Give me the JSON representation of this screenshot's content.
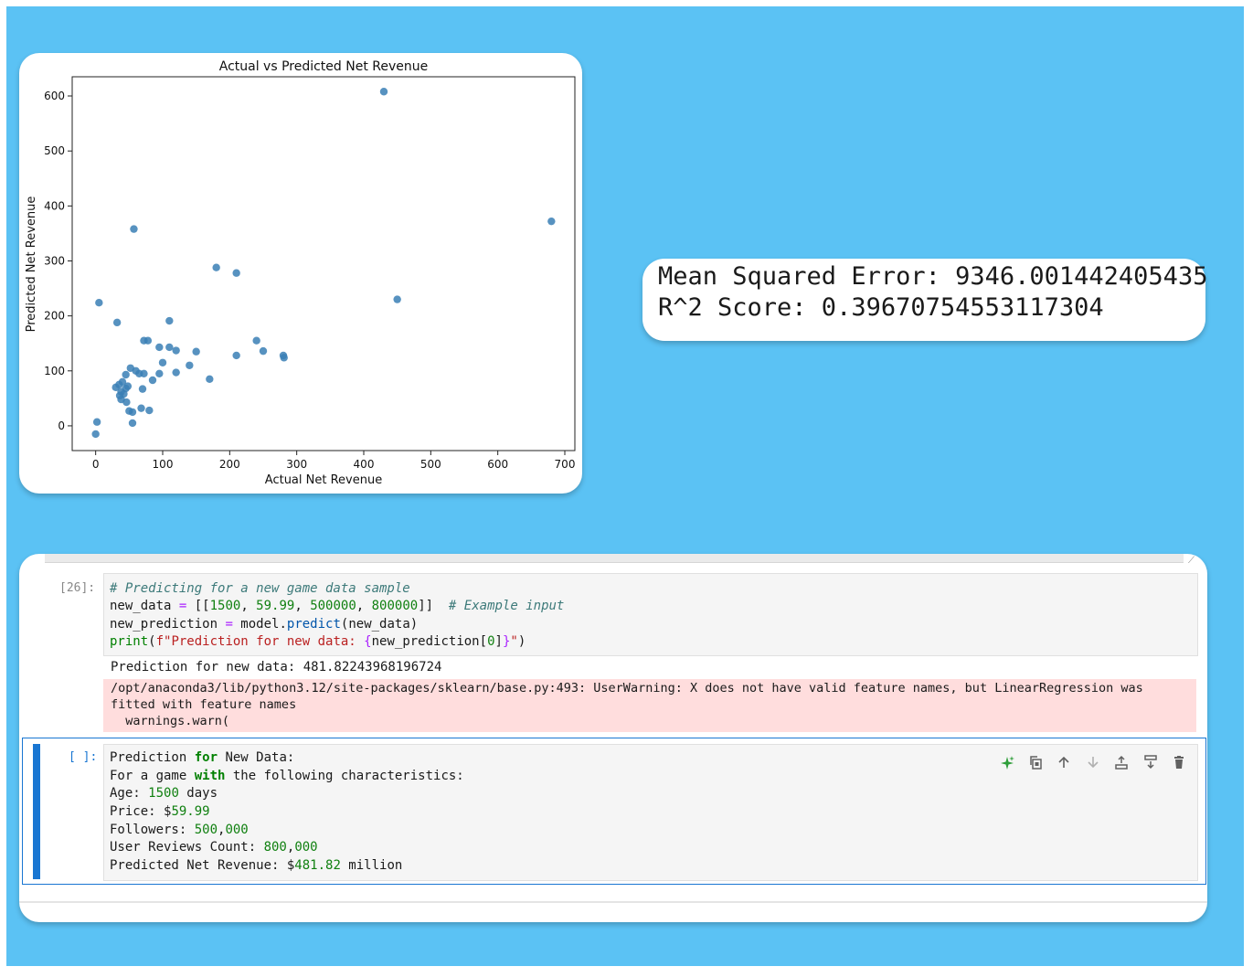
{
  "chart_data": {
    "type": "scatter",
    "title": "Actual vs Predicted Net Revenue",
    "xlabel": "Actual Net Revenue",
    "ylabel": "Predicted Net Revenue",
    "xlim": [
      -35,
      715
    ],
    "ylim": [
      -45,
      635
    ],
    "xticks": [
      0,
      100,
      200,
      300,
      400,
      500,
      600,
      700
    ],
    "yticks": [
      0,
      100,
      200,
      300,
      400,
      500,
      600
    ],
    "marker_color": "#3a7fb5",
    "grid": false,
    "points": [
      [
        430,
        608
      ],
      [
        680,
        372
      ],
      [
        57,
        358
      ],
      [
        180,
        288
      ],
      [
        210,
        278
      ],
      [
        450,
        230
      ],
      [
        5,
        224
      ],
      [
        110,
        191
      ],
      [
        32,
        188
      ],
      [
        72,
        155
      ],
      [
        78,
        155
      ],
      [
        240,
        155
      ],
      [
        95,
        143
      ],
      [
        110,
        143
      ],
      [
        120,
        137
      ],
      [
        150,
        135
      ],
      [
        250,
        136
      ],
      [
        210,
        128
      ],
      [
        280,
        128
      ],
      [
        281,
        124
      ],
      [
        100,
        115
      ],
      [
        140,
        110
      ],
      [
        52,
        105
      ],
      [
        60,
        100
      ],
      [
        65,
        95
      ],
      [
        45,
        93
      ],
      [
        120,
        97
      ],
      [
        95,
        95
      ],
      [
        72,
        95
      ],
      [
        170,
        85
      ],
      [
        85,
        83
      ],
      [
        40,
        80
      ],
      [
        35,
        75
      ],
      [
        30,
        70
      ],
      [
        45,
        68
      ],
      [
        38,
        62
      ],
      [
        70,
        67
      ],
      [
        42,
        58
      ],
      [
        38,
        48
      ],
      [
        46,
        43
      ],
      [
        68,
        32
      ],
      [
        80,
        28
      ],
      [
        50,
        27
      ],
      [
        55,
        25
      ],
      [
        2,
        7
      ],
      [
        55,
        5
      ],
      [
        0,
        -15
      ],
      [
        48,
        72
      ],
      [
        36,
        55
      ]
    ]
  },
  "metrics": {
    "mse_line": "Mean Squared Error: 9346.001442405435",
    "r2_line": "R^2 Score: 0.39670754553117304"
  },
  "notebook": {
    "cell1_prompt": "[26]:",
    "cell1_comment": "# Predicting for a new game data sample",
    "cell1_line2_a": "new_data ",
    "cell1_line2_eq": "=",
    "cell1_line2_b": " [[",
    "cell1_n1": "1500",
    "cell1_sep1": ", ",
    "cell1_n2": "59.99",
    "cell1_sep2": ", ",
    "cell1_n3": "500000",
    "cell1_sep3": ", ",
    "cell1_n4": "800000",
    "cell1_line2_c": "]]  ",
    "cell1_comment2": "# Example input",
    "cell1_line3_a": "new_prediction ",
    "cell1_line3_eq": "=",
    "cell1_line3_b": " model.",
    "cell1_line3_fn": "predict",
    "cell1_line3_c": "(new_data)",
    "cell1_line4_print": "print",
    "cell1_line4_a": "(",
    "cell1_line4_str1": "f\"Prediction for new data: ",
    "cell1_line4_brace1": "{",
    "cell1_line4_var": "new_prediction",
    "cell1_line4_idx": "[",
    "cell1_line4_zero": "0",
    "cell1_line4_idx2": "]",
    "cell1_line4_brace2": "}",
    "cell1_line4_str2": "\"",
    "cell1_line4_end": ")",
    "output_text": "Prediction for new data: 481.82243968196724",
    "warning_line1": "/opt/anaconda3/lib/python3.12/site-packages/sklearn/base.py:493: UserWarning: X does not have valid feature names, but LinearRegression was",
    "warning_line2": "fitted with feature names",
    "warning_line3": "  warnings.warn(",
    "cell2_prompt": "[ ]:",
    "c2_l1_a": "Prediction ",
    "c2_l1_kw": "for",
    "c2_l1_b": " New Data:",
    "c2_l2_a": "For a game ",
    "c2_l2_kw": "with",
    "c2_l2_b": " the following characteristics:",
    "c2_l3_a": "Age: ",
    "c2_l3_n": "1500",
    "c2_l3_b": " days",
    "c2_l4_a": "Price: $",
    "c2_l4_n": "59.99",
    "c2_l5_a": "Followers: ",
    "c2_l5_n1": "500",
    "c2_l5_c": ",",
    "c2_l5_n2": "000",
    "c2_l6_a": "User Reviews Count: ",
    "c2_l6_n1": "800",
    "c2_l6_c": ",",
    "c2_l6_n2": "000",
    "c2_l7_a": "Predicted Net Revenue: $",
    "c2_l7_n": "481.82",
    "c2_l7_b": " million",
    "toolbar_icons": [
      "sparkle-icon",
      "duplicate-icon",
      "move-up-icon",
      "move-down-icon",
      "insert-above-icon",
      "insert-below-icon",
      "delete-icon"
    ]
  }
}
